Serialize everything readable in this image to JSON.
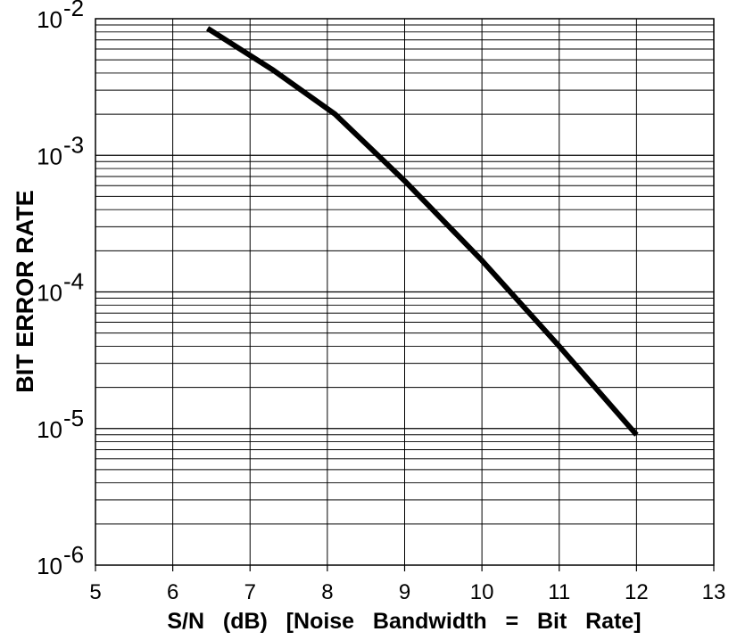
{
  "chart_data": {
    "type": "line",
    "title": "",
    "xlabel": "S/N   (dB)   [Noise   Bandwidth   =   Bit   Rate]",
    "ylabel": "BIT ERROR RATE",
    "xlim": [
      5,
      13
    ],
    "ylim": [
      1e-06,
      0.01
    ],
    "yscale": "log",
    "grid": true,
    "x_ticks": [
      "5",
      "6",
      "7",
      "8",
      "9",
      "10",
      "11",
      "12",
      "13"
    ],
    "y_ticks": [
      {
        "base": "10",
        "exp": "-6",
        "value": 1e-06
      },
      {
        "base": "10",
        "exp": "-5",
        "value": 1e-05
      },
      {
        "base": "10",
        "exp": "-4",
        "value": 0.0001
      },
      {
        "base": "10",
        "exp": "-3",
        "value": 0.001
      },
      {
        "base": "10",
        "exp": "-2",
        "value": 0.01
      }
    ],
    "series": [
      {
        "x": [
          6.45,
          7.3,
          8.1,
          9.0,
          10.0,
          11.0,
          12.0
        ],
        "y": [
          0.0085,
          0.0042,
          0.002,
          0.00065,
          0.00017,
          4e-05,
          9e-06
        ]
      }
    ],
    "line_color": "#000000"
  }
}
